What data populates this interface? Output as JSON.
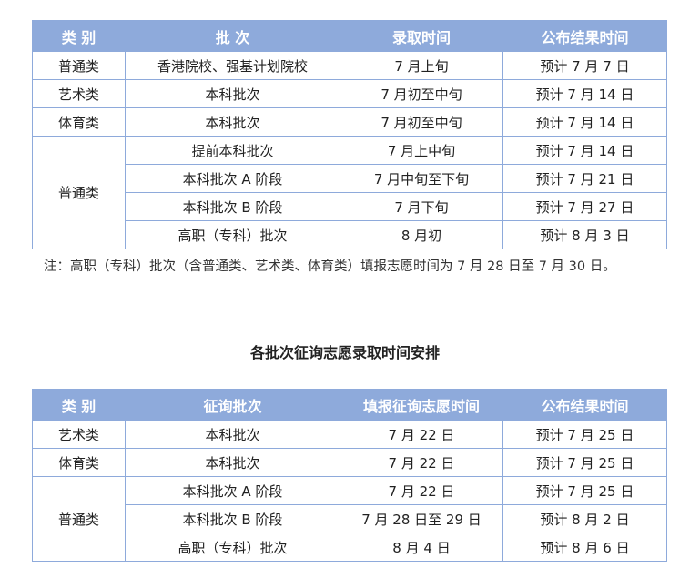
{
  "table1": {
    "headers": [
      "类 别",
      "批 次",
      "录取时间",
      "公布结果时间"
    ],
    "rows": [
      {
        "category": "普通类",
        "batch": "香港院校、强基计划院校",
        "admission": "7 月上旬",
        "result": "预计 7 月 7 日"
      },
      {
        "category": "艺术类",
        "batch": "本科批次",
        "admission": "7 月初至中旬",
        "result": "预计 7 月 14 日"
      },
      {
        "category": "体育类",
        "batch": "本科批次",
        "admission": "7 月初至中旬",
        "result": "预计 7 月 14 日"
      },
      {
        "category": "普通类",
        "batch": "提前本科批次",
        "admission": "7 月上中旬",
        "result": "预计 7 月 14 日"
      },
      {
        "batch": "本科批次 A 阶段",
        "admission": "7 月中旬至下旬",
        "result": "预计 7 月 21 日"
      },
      {
        "batch": "本科批次 B 阶段",
        "admission": "7 月下旬",
        "result": "预计 7 月 27 日"
      },
      {
        "batch": "高职（专科）批次",
        "admission": "8 月初",
        "result": "预计 8 月 3 日"
      }
    ],
    "note": "注：高职（专科）批次（含普通类、艺术类、体育类）填报志愿时间为 7 月 28 日至 7 月 30 日。"
  },
  "section_title": "各批次征询志愿录取时间安排",
  "table2": {
    "headers": [
      "类 别",
      "征询批次",
      "填报征询志愿时间",
      "公布结果时间"
    ],
    "rows": [
      {
        "category": "艺术类",
        "batch": "本科批次",
        "fill": "7 月 22 日",
        "result": "预计 7 月 25 日"
      },
      {
        "category": "体育类",
        "batch": "本科批次",
        "fill": "7 月 22 日",
        "result": "预计 7 月 25 日"
      },
      {
        "category": "普通类",
        "batch": "本科批次 A 阶段",
        "fill": "7 月 22 日",
        "result": "预计 7 月 25 日"
      },
      {
        "batch": "本科批次 B 阶段",
        "fill": "7 月 28 日至 29 日",
        "result": "预计 8 月 2 日"
      },
      {
        "batch": "高职（专科）批次",
        "fill": "8 月 4 日",
        "result": "预计 8 月 6 日"
      }
    ]
  }
}
